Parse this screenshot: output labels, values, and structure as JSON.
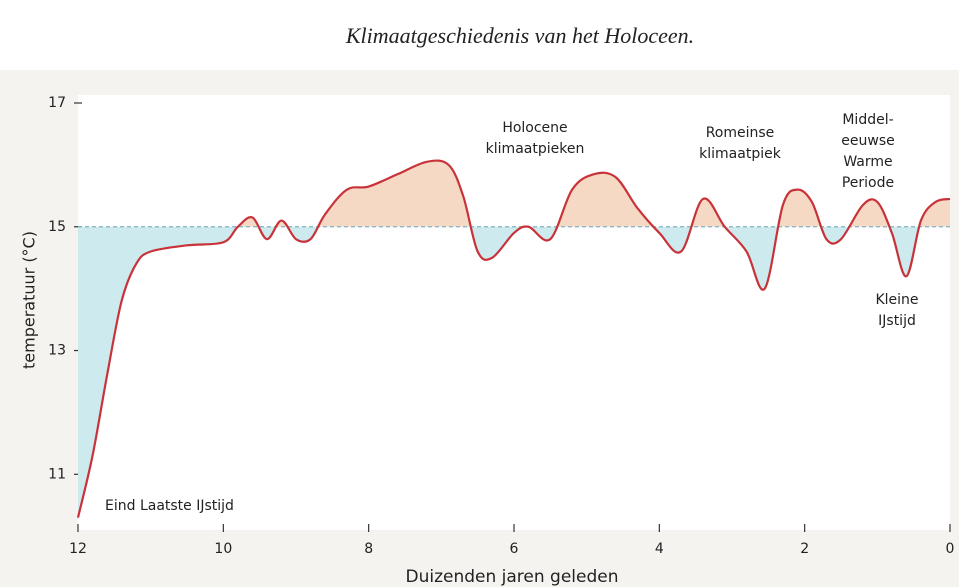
{
  "chart_data": {
    "type": "line",
    "title": "Klimaatgeschiedenis van het Holoceen.",
    "xlabel": "Duizenden jaren geleden",
    "ylabel": "temperatuur (°C)",
    "xlim": [
      12,
      0
    ],
    "ylim": [
      10.1,
      17
    ],
    "xticks": [
      12,
      10,
      8,
      6,
      4,
      2,
      0
    ],
    "yticks": [
      11,
      13,
      15,
      17
    ],
    "reference": 15,
    "color": "#c8333a",
    "warm_color": "#f6d9c4",
    "cold_color": "#cdebee",
    "series": [
      {
        "x": [
          12,
          11.8,
          11.6,
          11.4,
          11.2,
          11.0,
          10.5,
          10.0,
          9.8,
          9.6,
          9.4,
          9.2,
          9.0,
          8.8,
          8.6,
          8.3,
          8.0,
          7.6,
          7.2,
          6.9,
          6.7,
          6.5,
          6.3,
          6.0,
          5.8,
          5.5,
          5.2,
          4.9,
          4.6,
          4.3,
          4.0,
          3.7,
          3.4,
          3.1,
          2.8,
          2.55,
          2.3,
          2.1,
          1.9,
          1.7,
          1.5,
          1.2,
          1.0,
          0.8,
          0.6,
          0.4,
          0.2,
          0
        ],
        "values": [
          10.3,
          11.3,
          12.6,
          13.8,
          14.4,
          14.6,
          14.7,
          14.75,
          15.0,
          15.15,
          14.8,
          15.1,
          14.8,
          14.8,
          15.2,
          15.6,
          15.65,
          15.85,
          16.05,
          16.0,
          15.5,
          14.6,
          14.5,
          14.9,
          15.0,
          14.8,
          15.6,
          15.85,
          15.8,
          15.3,
          14.9,
          14.6,
          15.45,
          15.0,
          14.6,
          14.0,
          15.35,
          15.6,
          15.4,
          14.8,
          14.8,
          15.35,
          15.4,
          14.9,
          14.2,
          15.1,
          15.4,
          15.45
        ]
      }
    ],
    "annotations": [
      [
        "Eind Laatste IJstijd"
      ],
      [
        "Holocene",
        "klimaatpieken"
      ],
      [
        "Romeinse",
        "klimaatpiek"
      ],
      [
        "Middel-",
        "eeuwse",
        "Warme",
        "Periode"
      ],
      [
        "Kleine",
        "IJstijd"
      ]
    ]
  }
}
